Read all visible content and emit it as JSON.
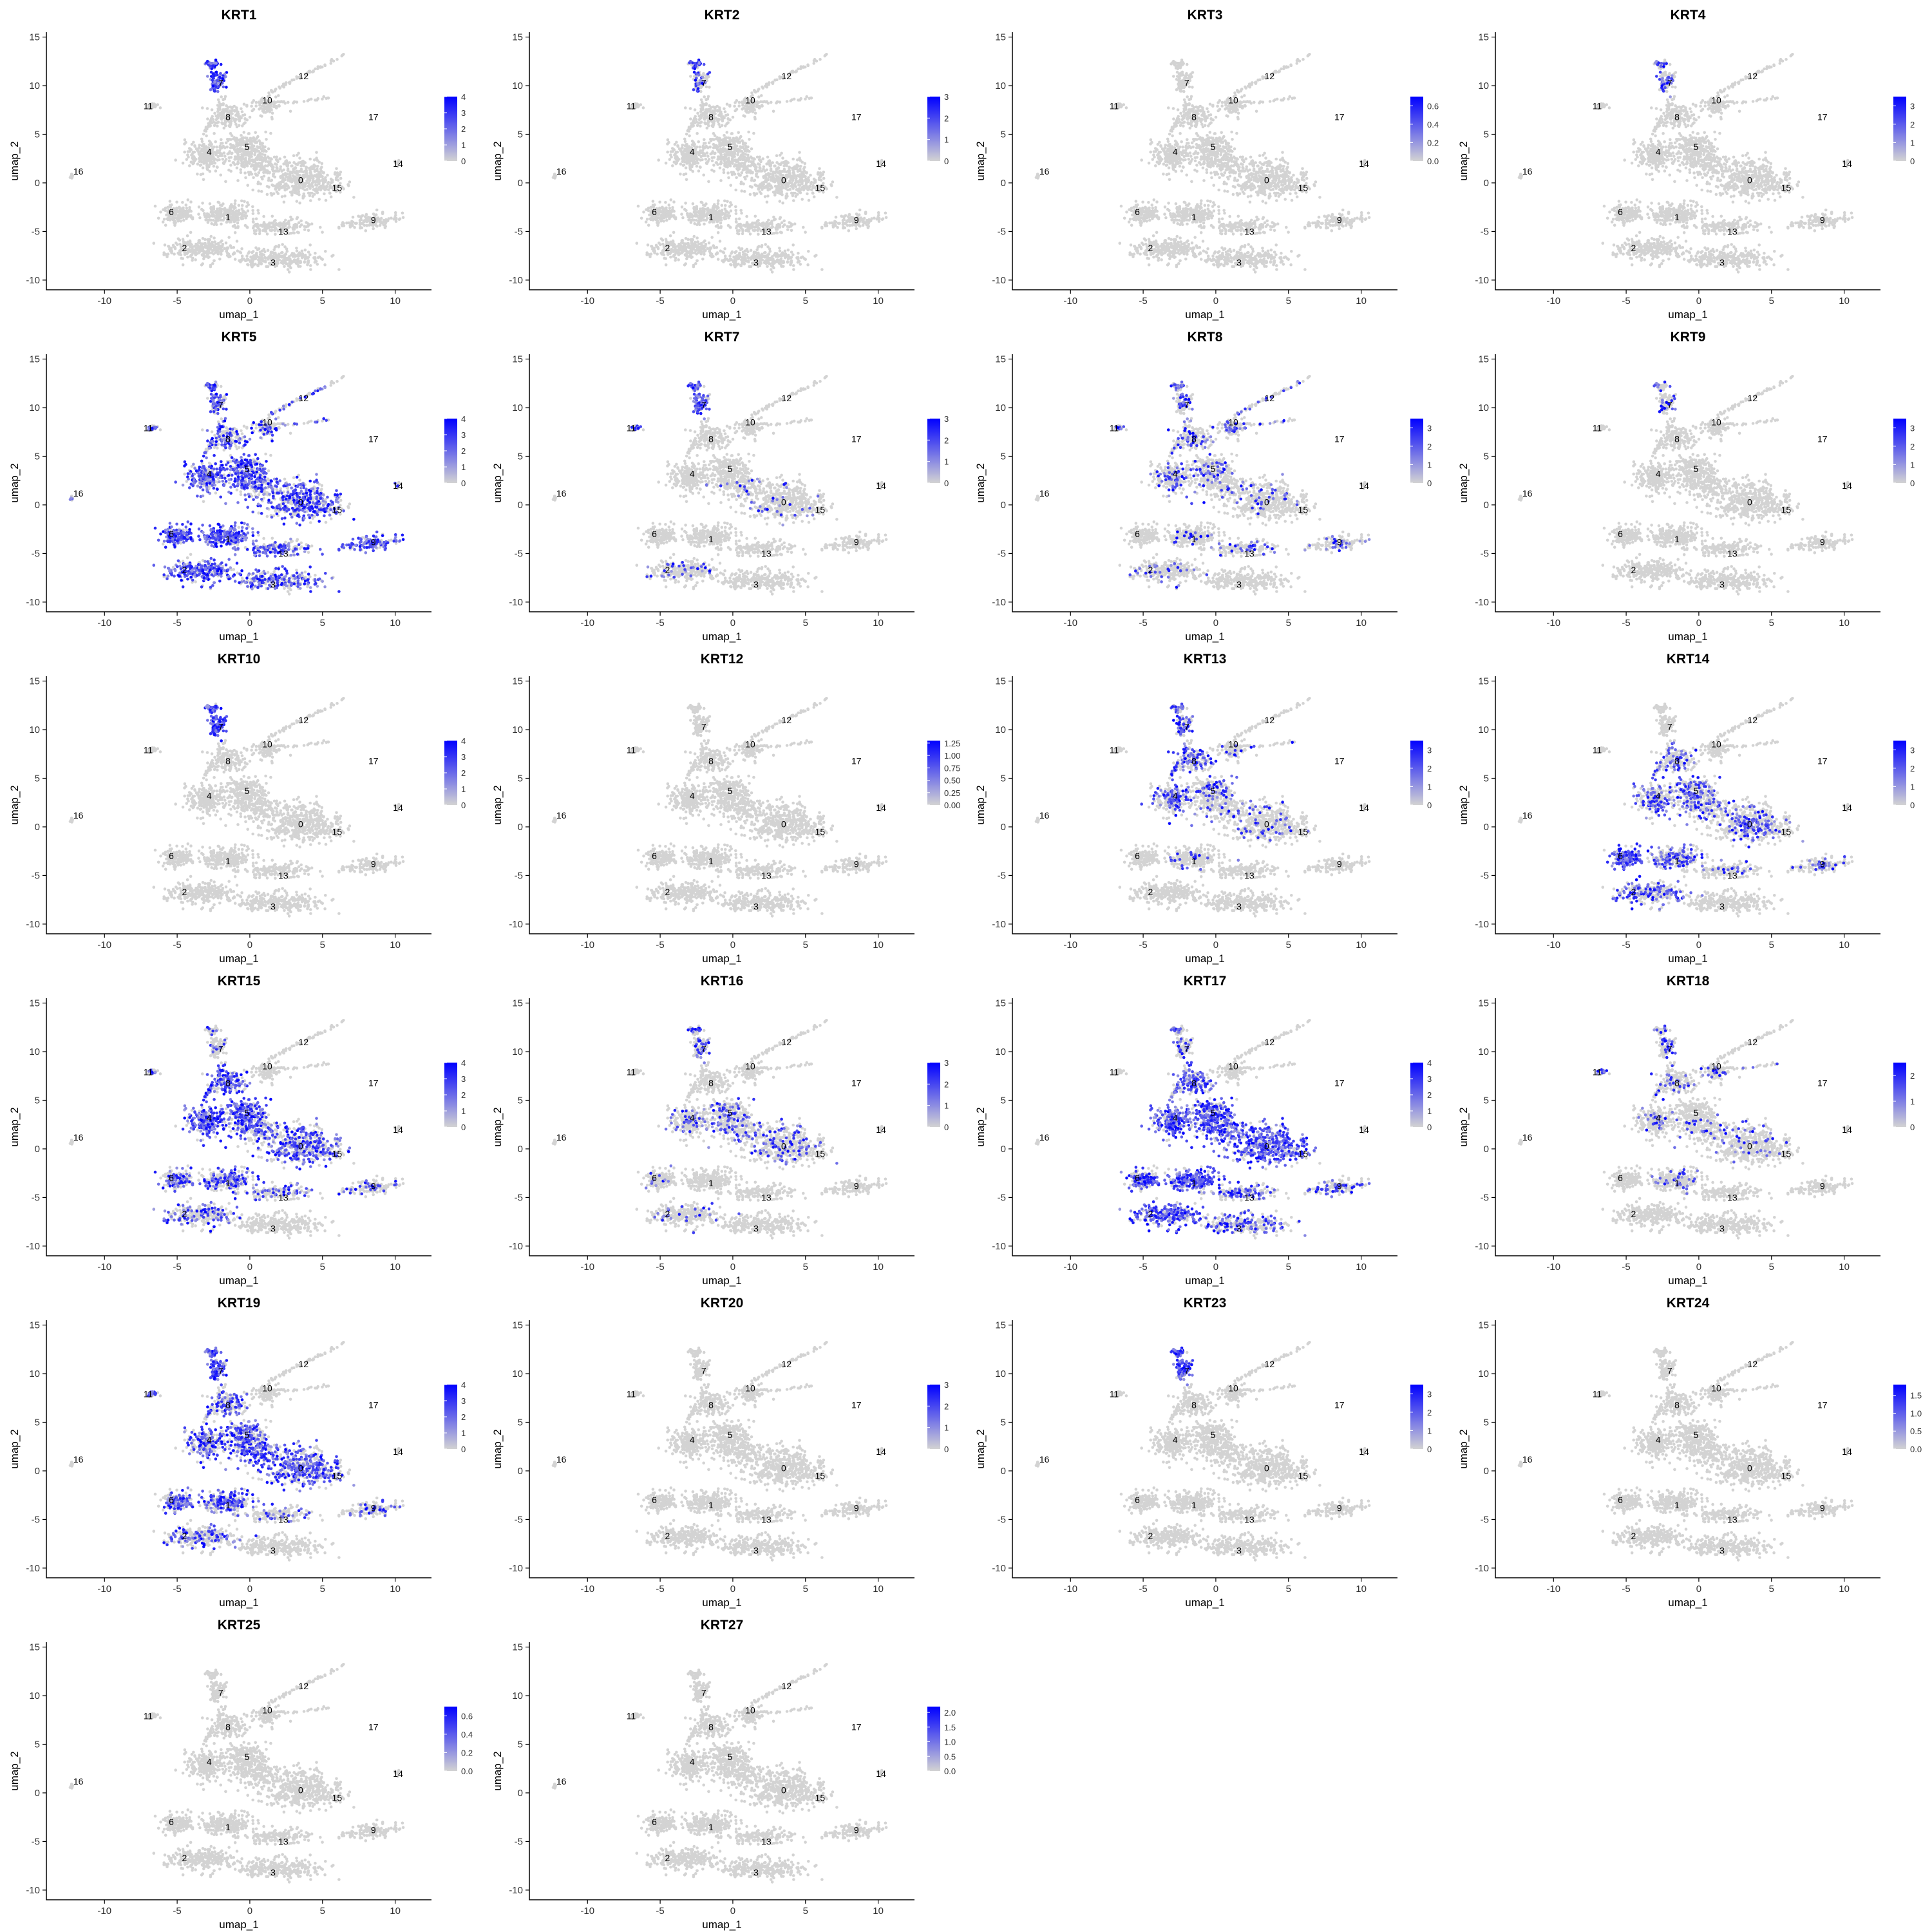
{
  "figure": {
    "layout": {
      "columns": 4,
      "rows": 6
    },
    "colors": {
      "low": "#d3d3d3",
      "high": "#0000ff",
      "axis": "#000000",
      "text": "#000000"
    },
    "cluster_labels": [
      {
        "label": "0",
        "x": 3.5,
        "y": 0.3
      },
      {
        "label": "1",
        "x": -1.5,
        "y": -3.5
      },
      {
        "label": "2",
        "x": -4.5,
        "y": -6.7
      },
      {
        "label": "3",
        "x": 1.6,
        "y": -8.2
      },
      {
        "label": "4",
        "x": -2.8,
        "y": 3.2
      },
      {
        "label": "5",
        "x": -0.2,
        "y": 3.7
      },
      {
        "label": "6",
        "x": -5.4,
        "y": -3.0
      },
      {
        "label": "7",
        "x": -2.0,
        "y": 10.3
      },
      {
        "label": "8",
        "x": -1.5,
        "y": 6.8
      },
      {
        "label": "9",
        "x": 8.5,
        "y": -3.8
      },
      {
        "label": "10",
        "x": 1.2,
        "y": 8.5
      },
      {
        "label": "11",
        "x": -7.0,
        "y": 7.9
      },
      {
        "label": "12",
        "x": 3.7,
        "y": 11.0
      },
      {
        "label": "13",
        "x": 2.3,
        "y": -5.0
      },
      {
        "label": "14",
        "x": 10.2,
        "y": 2.0
      },
      {
        "label": "15",
        "x": 6.0,
        "y": -0.5
      },
      {
        "label": "16",
        "x": -11.8,
        "y": 1.2
      },
      {
        "label": "17",
        "x": 8.5,
        "y": 6.8
      }
    ]
  },
  "chart_data": [
    {
      "type": "scatter",
      "title": "KRT1",
      "xlabel": "umap_1",
      "ylabel": "umap_2",
      "xlim": [
        -14,
        12.5
      ],
      "ylim": [
        -11,
        15.5
      ],
      "xticks": [
        "-10",
        "-5",
        "0",
        "5",
        "10"
      ],
      "yticks": [
        "-10",
        "-5",
        "0",
        "5",
        "10",
        "15"
      ],
      "legend_ticks": [
        "4",
        "3",
        "2",
        "1",
        "0"
      ],
      "legend_max": 4,
      "expression": {
        "7": 0.9
      }
    },
    {
      "type": "scatter",
      "title": "KRT2",
      "xlabel": "umap_1",
      "ylabel": "umap_2",
      "xlim": [
        -14,
        12.5
      ],
      "ylim": [
        -11,
        15.5
      ],
      "xticks": [
        "-10",
        "-5",
        "0",
        "5",
        "10"
      ],
      "yticks": [
        "-10",
        "-5",
        "0",
        "5",
        "10",
        "15"
      ],
      "legend_ticks": [
        "3",
        "2",
        "1",
        "0"
      ],
      "legend_max": 3,
      "expression": {
        "7": 0.4
      }
    },
    {
      "type": "scatter",
      "title": "KRT3",
      "xlabel": "umap_1",
      "ylabel": "umap_2",
      "xlim": [
        -14,
        12.5
      ],
      "ylim": [
        -11,
        15.5
      ],
      "xticks": [
        "-10",
        "-5",
        "0",
        "5",
        "10"
      ],
      "yticks": [
        "-10",
        "-5",
        "0",
        "5",
        "10",
        "15"
      ],
      "legend_ticks": [
        "0.6",
        "0.4",
        "0.2",
        "0.0"
      ],
      "legend_max": 0.7,
      "expression": {}
    },
    {
      "type": "scatter",
      "title": "KRT4",
      "xlabel": "umap_1",
      "ylabel": "umap_2",
      "xlim": [
        -14,
        12.5
      ],
      "ylim": [
        -11,
        15.5
      ],
      "xticks": [
        "-10",
        "-5",
        "0",
        "5",
        "10"
      ],
      "yticks": [
        "-10",
        "-5",
        "0",
        "5",
        "10",
        "15"
      ],
      "legend_ticks": [
        "3",
        "2",
        "1",
        "0"
      ],
      "legend_max": 3.5,
      "expression": {
        "7": 0.3
      }
    },
    {
      "type": "scatter",
      "title": "KRT5",
      "xlabel": "umap_1",
      "ylabel": "umap_2",
      "xlim": [
        -14,
        12.5
      ],
      "ylim": [
        -11,
        15.5
      ],
      "xticks": [
        "-10",
        "-5",
        "0",
        "5",
        "10"
      ],
      "yticks": [
        "-10",
        "-5",
        "0",
        "5",
        "10",
        "15"
      ],
      "legend_ticks": [
        "4",
        "3",
        "2",
        "1",
        "0"
      ],
      "legend_max": 4,
      "expression": {
        "0": 0.6,
        "1": 0.8,
        "2": 0.7,
        "3": 0.6,
        "4": 0.75,
        "5": 0.7,
        "6": 0.85,
        "7": 0.5,
        "8": 0.5,
        "9": 0.75,
        "10": 0.3,
        "11": 0.3,
        "12": 0.3,
        "13": 0.6,
        "14": 0.5,
        "15": 0.6,
        "16": 0.3
      }
    },
    {
      "type": "scatter",
      "title": "KRT7",
      "xlabel": "umap_1",
      "ylabel": "umap_2",
      "xlim": [
        -14,
        12.5
      ],
      "ylim": [
        -11,
        15.5
      ],
      "xticks": [
        "-10",
        "-5",
        "0",
        "5",
        "10"
      ],
      "yticks": [
        "-10",
        "-5",
        "0",
        "5",
        "10",
        "15"
      ],
      "legend_ticks": [
        "3",
        "2",
        "1",
        "0"
      ],
      "legend_max": 3,
      "expression": {
        "7": 0.6,
        "11": 0.5,
        "0": 0.05,
        "2": 0.1
      }
    },
    {
      "type": "scatter",
      "title": "KRT8",
      "xlabel": "umap_1",
      "ylabel": "umap_2",
      "xlim": [
        -14,
        12.5
      ],
      "ylim": [
        -11,
        15.5
      ],
      "xticks": [
        "-10",
        "-5",
        "0",
        "5",
        "10"
      ],
      "yticks": [
        "-10",
        "-5",
        "0",
        "5",
        "10",
        "15"
      ],
      "legend_ticks": [
        "3",
        "2",
        "1",
        "0"
      ],
      "legend_max": 3.5,
      "expression": {
        "0": 0.1,
        "1": 0.1,
        "2": 0.1,
        "4": 0.2,
        "5": 0.15,
        "7": 0.3,
        "8": 0.25,
        "10": 0.2,
        "11": 0.3,
        "12": 0.2,
        "13": 0.15,
        "9": 0.15
      }
    },
    {
      "type": "scatter",
      "title": "KRT9",
      "xlabel": "umap_1",
      "ylabel": "umap_2",
      "xlim": [
        -14,
        12.5
      ],
      "ylim": [
        -11,
        15.5
      ],
      "xticks": [
        "-10",
        "-5",
        "0",
        "5",
        "10"
      ],
      "yticks": [
        "-10",
        "-5",
        "0",
        "5",
        "10",
        "15"
      ],
      "legend_ticks": [
        "3",
        "2",
        "1",
        "0"
      ],
      "legend_max": 3.5,
      "expression": {
        "7": 0.2
      }
    },
    {
      "type": "scatter",
      "title": "KRT10",
      "xlabel": "umap_1",
      "ylabel": "umap_2",
      "xlim": [
        -14,
        12.5
      ],
      "ylim": [
        -11,
        15.5
      ],
      "xticks": [
        "-10",
        "-5",
        "0",
        "5",
        "10"
      ],
      "yticks": [
        "-10",
        "-5",
        "0",
        "5",
        "10",
        "15"
      ],
      "legend_ticks": [
        "4",
        "3",
        "2",
        "1",
        "0"
      ],
      "legend_max": 4,
      "expression": {
        "7": 0.9
      }
    },
    {
      "type": "scatter",
      "title": "KRT12",
      "xlabel": "umap_1",
      "ylabel": "umap_2",
      "xlim": [
        -14,
        12.5
      ],
      "ylim": [
        -11,
        15.5
      ],
      "xticks": [
        "-10",
        "-5",
        "0",
        "5",
        "10"
      ],
      "yticks": [
        "-10",
        "-5",
        "0",
        "5",
        "10",
        "15"
      ],
      "legend_ticks": [
        "1.25",
        "1.00",
        "0.75",
        "0.50",
        "0.25",
        "0.00"
      ],
      "legend_max": 1.3,
      "expression": {}
    },
    {
      "type": "scatter",
      "title": "KRT13",
      "xlabel": "umap_1",
      "ylabel": "umap_2",
      "xlim": [
        -14,
        12.5
      ],
      "ylim": [
        -11,
        15.5
      ],
      "xticks": [
        "-10",
        "-5",
        "0",
        "5",
        "10"
      ],
      "yticks": [
        "-10",
        "-5",
        "0",
        "5",
        "10",
        "15"
      ],
      "legend_ticks": [
        "3",
        "2",
        "1",
        "0"
      ],
      "legend_max": 3.5,
      "expression": {
        "4": 0.35,
        "5": 0.25,
        "7": 0.45,
        "8": 0.45,
        "0": 0.1,
        "1": 0.1,
        "10": 0.1
      }
    },
    {
      "type": "scatter",
      "title": "KRT14",
      "xlabel": "umap_1",
      "ylabel": "umap_2",
      "xlim": [
        -14,
        12.5
      ],
      "ylim": [
        -11,
        15.5
      ],
      "xticks": [
        "-10",
        "-5",
        "0",
        "5",
        "10"
      ],
      "yticks": [
        "-10",
        "-5",
        "0",
        "5",
        "10",
        "15"
      ],
      "legend_ticks": [
        "3",
        "2",
        "1",
        "0"
      ],
      "legend_max": 3.5,
      "expression": {
        "0": 0.3,
        "1": 0.45,
        "2": 0.35,
        "4": 0.4,
        "5": 0.4,
        "6": 0.85,
        "8": 0.3,
        "9": 0.2,
        "13": 0.2
      }
    },
    {
      "type": "scatter",
      "title": "KRT15",
      "xlabel": "umap_1",
      "ylabel": "umap_2",
      "xlim": [
        -14,
        12.5
      ],
      "ylim": [
        -11,
        15.5
      ],
      "xticks": [
        "-10",
        "-5",
        "0",
        "5",
        "10"
      ],
      "yticks": [
        "-10",
        "-5",
        "0",
        "5",
        "10",
        "15"
      ],
      "legend_ticks": [
        "4",
        "3",
        "2",
        "1",
        "0"
      ],
      "legend_max": 4,
      "expression": {
        "0": 0.5,
        "1": 0.45,
        "2": 0.3,
        "4": 0.8,
        "5": 0.75,
        "6": 0.4,
        "7": 0.15,
        "8": 0.7,
        "9": 0.2,
        "11": 0.3,
        "13": 0.3,
        "15": 0.35
      }
    },
    {
      "type": "scatter",
      "title": "KRT16",
      "xlabel": "umap_1",
      "ylabel": "umap_2",
      "xlim": [
        -14,
        12.5
      ],
      "ylim": [
        -11,
        15.5
      ],
      "xticks": [
        "-10",
        "-5",
        "0",
        "5",
        "10"
      ],
      "yticks": [
        "-10",
        "-5",
        "0",
        "5",
        "10",
        "15"
      ],
      "legend_ticks": [
        "3",
        "2",
        "1",
        "0"
      ],
      "legend_max": 3,
      "expression": {
        "5": 0.3,
        "0": 0.2,
        "7": 0.35,
        "6": 0.15,
        "2": 0.1,
        "4": 0.15
      }
    },
    {
      "type": "scatter",
      "title": "KRT17",
      "xlabel": "umap_1",
      "ylabel": "umap_2",
      "xlim": [
        -14,
        12.5
      ],
      "ylim": [
        -11,
        15.5
      ],
      "xticks": [
        "-10",
        "-5",
        "0",
        "5",
        "10"
      ],
      "yticks": [
        "-10",
        "-5",
        "0",
        "5",
        "10",
        "15"
      ],
      "legend_ticks": [
        "4",
        "3",
        "2",
        "1",
        "0"
      ],
      "legend_max": 4,
      "expression": {
        "0": 0.75,
        "1": 0.8,
        "2": 0.7,
        "3": 0.45,
        "4": 0.75,
        "5": 0.7,
        "6": 0.55,
        "7": 0.2,
        "8": 0.55,
        "9": 0.3,
        "13": 0.4,
        "15": 0.5
      }
    },
    {
      "type": "scatter",
      "title": "KRT18",
      "xlabel": "umap_1",
      "ylabel": "umap_2",
      "xlim": [
        -14,
        12.5
      ],
      "ylim": [
        -11,
        15.5
      ],
      "xticks": [
        "-10",
        "-5",
        "0",
        "5",
        "10"
      ],
      "yticks": [
        "-10",
        "-5",
        "0",
        "5",
        "10",
        "15"
      ],
      "legend_ticks": [
        "2",
        "1",
        "0"
      ],
      "legend_max": 2.5,
      "expression": {
        "11": 0.4,
        "8": 0.2,
        "10": 0.2,
        "4": 0.15,
        "0": 0.1,
        "1": 0.1,
        "7": 0.2
      }
    },
    {
      "type": "scatter",
      "title": "KRT19",
      "xlabel": "umap_1",
      "ylabel": "umap_2",
      "xlim": [
        -14,
        12.5
      ],
      "ylim": [
        -11,
        15.5
      ],
      "xticks": [
        "-10",
        "-5",
        "0",
        "5",
        "10"
      ],
      "yticks": [
        "-10",
        "-5",
        "0",
        "5",
        "10",
        "15"
      ],
      "legend_ticks": [
        "4",
        "3",
        "2",
        "1",
        "0"
      ],
      "legend_max": 4,
      "expression": {
        "0": 0.55,
        "1": 0.45,
        "2": 0.3,
        "4": 0.55,
        "5": 0.5,
        "6": 0.6,
        "7": 0.85,
        "8": 0.45,
        "11": 0.4,
        "9": 0.2,
        "13": 0.2,
        "15": 0.4
      }
    },
    {
      "type": "scatter",
      "title": "KRT20",
      "xlabel": "umap_1",
      "ylabel": "umap_2",
      "xlim": [
        -14,
        12.5
      ],
      "ylim": [
        -11,
        15.5
      ],
      "xticks": [
        "-10",
        "-5",
        "0",
        "5",
        "10"
      ],
      "yticks": [
        "-10",
        "-5",
        "0",
        "5",
        "10",
        "15"
      ],
      "legend_ticks": [
        "3",
        "2",
        "1",
        "0"
      ],
      "legend_max": 3,
      "expression": {}
    },
    {
      "type": "scatter",
      "title": "KRT23",
      "xlabel": "umap_1",
      "ylabel": "umap_2",
      "xlim": [
        -14,
        12.5
      ],
      "ylim": [
        -11,
        15.5
      ],
      "xticks": [
        "-10",
        "-5",
        "0",
        "5",
        "10"
      ],
      "yticks": [
        "-10",
        "-5",
        "0",
        "5",
        "10",
        "15"
      ],
      "legend_ticks": [
        "3",
        "2",
        "1",
        "0"
      ],
      "legend_max": 3.5,
      "expression": {
        "7": 0.9
      }
    },
    {
      "type": "scatter",
      "title": "KRT24",
      "xlabel": "umap_1",
      "ylabel": "umap_2",
      "xlim": [
        -14,
        12.5
      ],
      "ylim": [
        -11,
        15.5
      ],
      "xticks": [
        "-10",
        "-5",
        "0",
        "5",
        "10"
      ],
      "yticks": [
        "-10",
        "-5",
        "0",
        "5",
        "10",
        "15"
      ],
      "legend_ticks": [
        "1.5",
        "1.0",
        "0.5",
        "0.0"
      ],
      "legend_max": 1.8,
      "expression": {}
    },
    {
      "type": "scatter",
      "title": "KRT25",
      "xlabel": "umap_1",
      "ylabel": "umap_2",
      "xlim": [
        -14,
        12.5
      ],
      "ylim": [
        -11,
        15.5
      ],
      "xticks": [
        "-10",
        "-5",
        "0",
        "5",
        "10"
      ],
      "yticks": [
        "-10",
        "-5",
        "0",
        "5",
        "10",
        "15"
      ],
      "legend_ticks": [
        "0.6",
        "0.4",
        "0.2",
        "0.0"
      ],
      "legend_max": 0.7,
      "expression": {}
    },
    {
      "type": "scatter",
      "title": "KRT27",
      "xlabel": "umap_1",
      "ylabel": "umap_2",
      "xlim": [
        -14,
        12.5
      ],
      "ylim": [
        -11,
        15.5
      ],
      "xticks": [
        "-10",
        "-5",
        "0",
        "5",
        "10"
      ],
      "yticks": [
        "-10",
        "-5",
        "0",
        "5",
        "10",
        "15"
      ],
      "legend_ticks": [
        "2.0",
        "1.5",
        "1.0",
        "0.5",
        "0.0"
      ],
      "legend_max": 2.2,
      "expression": {}
    }
  ]
}
